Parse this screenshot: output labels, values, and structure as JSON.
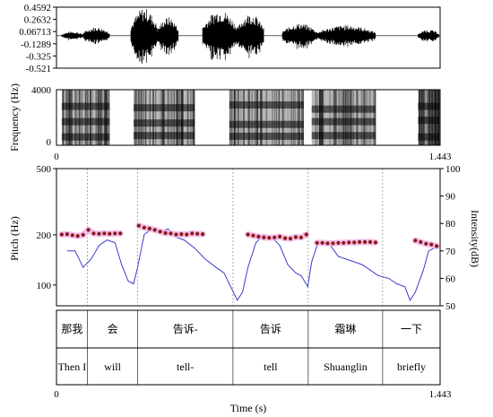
{
  "chart_data": [
    {
      "type": "waveform",
      "y_ticks": [
        "0.4592",
        "0.2632",
        "0.06713",
        "-0.1289",
        "-0.325",
        "-0.521"
      ],
      "ylim": [
        -0.521,
        0.4592
      ],
      "segments": [
        {
          "t0": 0.02,
          "t1": 0.1,
          "amp": 0.07
        },
        {
          "t0": 0.1,
          "t1": 0.2,
          "amp": 0.14
        },
        {
          "t0": 0.28,
          "t1": 0.38,
          "amp": 0.45
        },
        {
          "t0": 0.38,
          "t1": 0.46,
          "amp": 0.3
        },
        {
          "t0": 0.55,
          "t1": 0.68,
          "amp": 0.42
        },
        {
          "t0": 0.68,
          "t1": 0.78,
          "amp": 0.36
        },
        {
          "t0": 0.85,
          "t1": 0.98,
          "amp": 0.2
        },
        {
          "t0": 0.98,
          "t1": 1.2,
          "amp": 0.17
        },
        {
          "t0": 1.36,
          "t1": 1.44,
          "amp": 0.1
        }
      ]
    },
    {
      "type": "spectrogram",
      "ylabel": "Frequency (Hz)",
      "y_ticks": [
        "0",
        "4000"
      ],
      "ylim": [
        0,
        4000
      ],
      "x_ticks": [
        "0",
        "1.443"
      ],
      "voiced_regions": [
        {
          "t0": 0.02,
          "t1": 0.2
        },
        {
          "t0": 0.29,
          "t1": 0.52
        },
        {
          "t0": 0.65,
          "t1": 0.93
        },
        {
          "t0": 0.96,
          "t1": 1.2
        },
        {
          "t0": 1.36,
          "t1": 1.44
        }
      ],
      "formant_bands": [
        {
          "t0": 0.02,
          "t1": 0.2,
          "freqs": [
            600,
            1700,
            2800
          ]
        },
        {
          "t0": 0.29,
          "t1": 0.52,
          "freqs": [
            700,
            1600,
            2700
          ]
        },
        {
          "t0": 0.65,
          "t1": 0.93,
          "freqs": [
            650,
            1500,
            2900
          ]
        },
        {
          "t0": 0.96,
          "t1": 1.2,
          "freqs": [
            700,
            1700,
            2600
          ]
        },
        {
          "t0": 1.36,
          "t1": 1.44,
          "freqs": [
            600,
            1800,
            2800
          ]
        }
      ]
    },
    {
      "type": "line",
      "xlabel": "Time (s)",
      "ylabel_left": "Pitch (Hz)",
      "ylabel_right": "Intensity(dB)",
      "x_ticks": [
        "0",
        "1.443"
      ],
      "xlim": [
        0,
        1.443
      ],
      "left_ticks": [
        "500",
        "200",
        "100"
      ],
      "left_scale": "log",
      "left_range": [
        75,
        500
      ],
      "right_ticks": [
        "100",
        "90",
        "80",
        "70",
        "60",
        "50"
      ],
      "right_range": [
        50,
        100
      ],
      "boundaries": [
        0.117,
        0.305,
        0.664,
        0.947,
        1.227
      ],
      "series": [
        {
          "kind": "pitch",
          "color": "#8b1a1a",
          "halo": "#f2b8e8",
          "segments": [
            [
              [
                0.02,
                201
              ],
              [
                0.04,
                202
              ],
              [
                0.06,
                199
              ],
              [
                0.08,
                197
              ],
              [
                0.1,
                200
              ],
              [
                0.12,
                214
              ],
              [
                0.14,
                204
              ],
              [
                0.16,
                203
              ],
              [
                0.18,
                204
              ],
              [
                0.2,
                203
              ],
              [
                0.22,
                204
              ],
              [
                0.24,
                204
              ]
            ],
            [
              [
                0.31,
                227
              ],
              [
                0.33,
                221
              ],
              [
                0.35,
                218
              ],
              [
                0.37,
                214
              ],
              [
                0.39,
                209
              ],
              [
                0.41,
                205
              ],
              [
                0.43,
                204
              ],
              [
                0.45,
                201
              ],
              [
                0.47,
                202
              ],
              [
                0.49,
                201
              ],
              [
                0.51,
                204
              ],
              [
                0.53,
                203
              ],
              [
                0.55,
                202
              ]
            ],
            [
              [
                0.72,
                201
              ],
              [
                0.74,
                198
              ],
              [
                0.76,
                195
              ],
              [
                0.78,
                193
              ],
              [
                0.8,
                192
              ],
              [
                0.82,
                193
              ],
              [
                0.84,
                195
              ],
              [
                0.86,
                191
              ],
              [
                0.88,
                190
              ],
              [
                0.9,
                194
              ],
              [
                0.92,
                193
              ],
              [
                0.94,
                201
              ]
            ],
            [
              [
                0.98,
                179
              ],
              [
                1.0,
                179
              ],
              [
                1.02,
                178
              ],
              [
                1.04,
                178
              ],
              [
                1.06,
                179
              ],
              [
                1.08,
                179
              ],
              [
                1.1,
                180
              ],
              [
                1.12,
                180
              ],
              [
                1.14,
                181
              ],
              [
                1.16,
                181
              ],
              [
                1.18,
                181
              ],
              [
                1.2,
                180
              ]
            ],
            [
              [
                1.35,
                185
              ],
              [
                1.37,
                181
              ],
              [
                1.39,
                177
              ],
              [
                1.41,
                175
              ],
              [
                1.43,
                171
              ]
            ]
          ]
        },
        {
          "kind": "intensity",
          "color": "#3b3bcf",
          "points": [
            [
              0.04,
              70
            ],
            [
              0.07,
              70
            ],
            [
              0.1,
              64
            ],
            [
              0.13,
              67
            ],
            [
              0.16,
              72
            ],
            [
              0.19,
              74
            ],
            [
              0.22,
              73
            ],
            [
              0.245,
              65
            ],
            [
              0.27,
              59
            ],
            [
              0.29,
              58
            ],
            [
              0.305,
              64
            ],
            [
              0.33,
              76
            ],
            [
              0.36,
              78
            ],
            [
              0.39,
              77
            ],
            [
              0.42,
              78
            ],
            [
              0.45,
              75
            ],
            [
              0.48,
              74
            ],
            [
              0.52,
              71
            ],
            [
              0.56,
              67
            ],
            [
              0.6,
              64
            ],
            [
              0.63,
              62
            ],
            [
              0.66,
              56
            ],
            [
              0.68,
              52
            ],
            [
              0.7,
              55
            ],
            [
              0.72,
              64
            ],
            [
              0.75,
              73
            ],
            [
              0.78,
              76
            ],
            [
              0.81,
              75
            ],
            [
              0.84,
              72
            ],
            [
              0.87,
              65
            ],
            [
              0.9,
              62
            ],
            [
              0.92,
              61
            ],
            [
              0.945,
              57
            ],
            [
              0.96,
              66
            ],
            [
              0.98,
              72
            ],
            [
              1.0,
              73
            ],
            [
              1.03,
              72
            ],
            [
              1.06,
              68
            ],
            [
              1.09,
              67
            ],
            [
              1.12,
              66
            ],
            [
              1.15,
              65
            ],
            [
              1.18,
              63
            ],
            [
              1.21,
              61
            ],
            [
              1.25,
              60
            ],
            [
              1.28,
              58
            ],
            [
              1.31,
              57
            ],
            [
              1.33,
              52
            ],
            [
              1.35,
              55
            ],
            [
              1.38,
              63
            ],
            [
              1.4,
              70
            ],
            [
              1.42,
              71
            ]
          ]
        }
      ],
      "tiers": [
        [
          "那我",
          "会",
          "告诉-",
          "告诉",
          "霜琳",
          "一下"
        ],
        [
          "Then I",
          "will",
          "tell-",
          "tell",
          "Shuanglin",
          "briefly"
        ]
      ]
    }
  ]
}
